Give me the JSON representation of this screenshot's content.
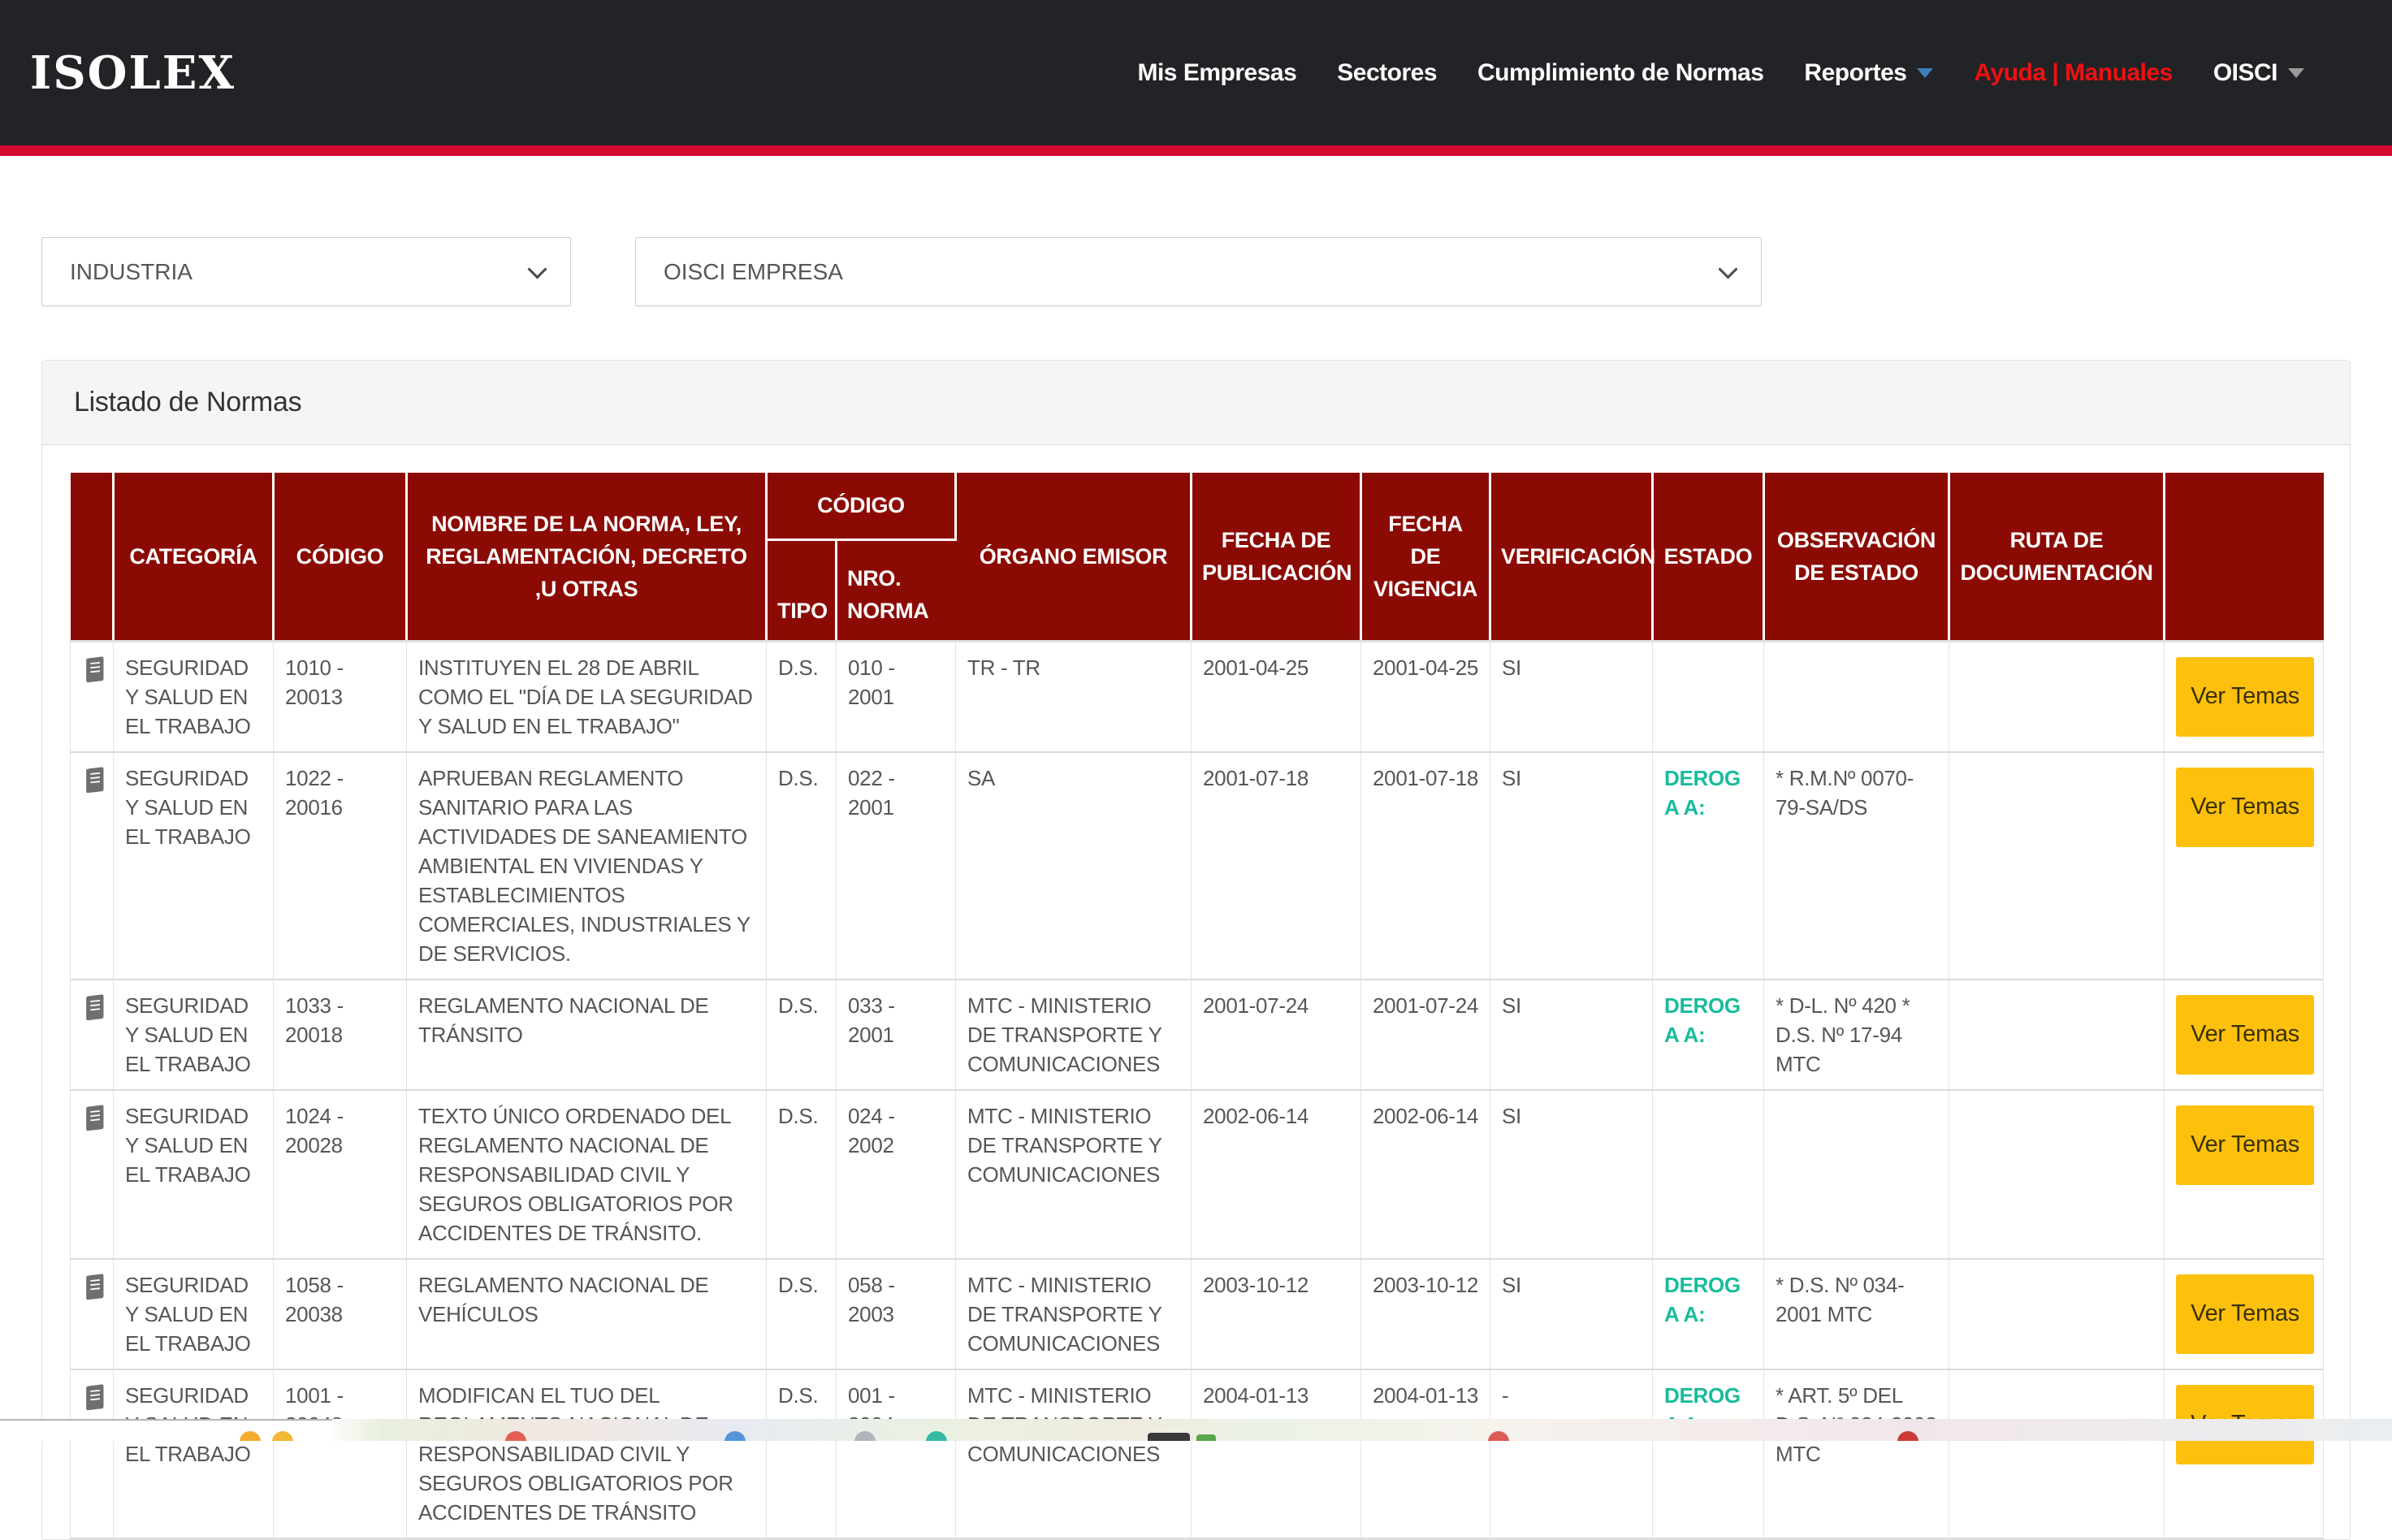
{
  "nav": {
    "brand": "ISOLEX",
    "items": [
      {
        "label": "Mis Empresas",
        "caret": null,
        "accent": false
      },
      {
        "label": "Sectores",
        "caret": null,
        "accent": false
      },
      {
        "label": "Cumplimiento de Normas",
        "caret": null,
        "accent": false
      },
      {
        "label": "Reportes",
        "caret": "blue",
        "accent": false
      },
      {
        "label": "Ayuda | Manuales",
        "caret": null,
        "accent": true
      },
      {
        "label": "OISCI",
        "caret": "gray",
        "accent": false
      }
    ]
  },
  "filters": {
    "sector_select": {
      "value": "INDUSTRIA"
    },
    "empresa_select": {
      "value": "OISCI EMPRESA"
    }
  },
  "panel": {
    "title": "Listado de Normas"
  },
  "table": {
    "action_label": "Ver Temas",
    "headers": {
      "categoria": "CATEGORÍA",
      "codigo": "CÓDIGO",
      "nombre": "NOMBRE DE LA NORMA, LEY, REGLAMENTACIÓN, DECRETO ,U OTRAS",
      "codigo_group": "CÓDIGO",
      "tipo": "TIPO",
      "nro_norma": "NRO. NORMA",
      "organo_emisor": "ÓRGANO EMISOR",
      "fecha_publicacion": "FECHA DE PUBLICACIÓN",
      "fecha_vigencia": "FECHA DE VIGENCIA",
      "verificacion": "VERIFICACIÓN",
      "estado": "ESTADO",
      "observacion_estado": "OBSERVACIÓN DE ESTADO",
      "ruta_documentacion": "RUTA DE DOCUMENTACIÓN"
    },
    "rows": [
      {
        "categoria": "SEGURIDAD Y SALUD EN EL TRABAJO",
        "codigo": "1010 - 20013",
        "nombre": "INSTITUYEN EL 28 DE ABRIL COMO EL \"DÍA DE LA SEGURIDAD Y SALUD EN EL TRABAJO\"",
        "tipo": "D.S.",
        "nro_norma": "010 - 2001",
        "organo_emisor": "TR - TR",
        "fecha_publicacion": "2001-04-25",
        "fecha_vigencia": "2001-04-25",
        "verificacion": "SI",
        "estado": "",
        "observacion": "",
        "ruta": ""
      },
      {
        "categoria": "SEGURIDAD Y SALUD EN EL TRABAJO",
        "codigo": "1022 - 20016",
        "nombre": "APRUEBAN REGLAMENTO SANITARIO PARA LAS ACTIVIDADES DE SANEAMIENTO AMBIENTAL EN VIVIENDAS Y ESTABLECIMIENTOS COMERCIALES, INDUSTRIALES Y DE SERVICIOS.",
        "tipo": "D.S.",
        "nro_norma": "022 - 2001",
        "organo_emisor": "SA",
        "fecha_publicacion": "2001-07-18",
        "fecha_vigencia": "2001-07-18",
        "verificacion": "SI",
        "estado": "DEROGA A:",
        "observacion": "* R.M.Nº 0070-79-SA/DS",
        "ruta": ""
      },
      {
        "categoria": "SEGURIDAD Y SALUD EN EL TRABAJO",
        "codigo": "1033 - 20018",
        "nombre": "REGLAMENTO NACIONAL DE TRÁNSITO",
        "tipo": "D.S.",
        "nro_norma": "033 - 2001",
        "organo_emisor": "MTC - MINISTERIO DE TRANSPORTE Y COMUNICACIONES",
        "fecha_publicacion": "2001-07-24",
        "fecha_vigencia": "2001-07-24",
        "verificacion": "SI",
        "estado": "DEROGA A:",
        "observacion": "* D-L. Nº 420 * D.S. Nº 17-94 MTC",
        "ruta": ""
      },
      {
        "categoria": "SEGURIDAD Y SALUD EN EL TRABAJO",
        "codigo": "1024 - 20028",
        "nombre": "TEXTO ÚNICO ORDENADO DEL REGLAMENTO NACIONAL DE RESPONSABILIDAD CIVIL Y SEGUROS OBLIGATORIOS POR ACCIDENTES DE TRÁNSITO.",
        "tipo": "D.S.",
        "nro_norma": "024 - 2002",
        "organo_emisor": "MTC - MINISTERIO DE TRANSPORTE Y COMUNICACIONES",
        "fecha_publicacion": "2002-06-14",
        "fecha_vigencia": "2002-06-14",
        "verificacion": "SI",
        "estado": "",
        "observacion": "",
        "ruta": ""
      },
      {
        "categoria": "SEGURIDAD Y SALUD EN EL TRABAJO",
        "codigo": "1058 - 20038",
        "nombre": "REGLAMENTO NACIONAL DE VEHÍCULOS",
        "tipo": "D.S.",
        "nro_norma": "058 - 2003",
        "organo_emisor": "MTC - MINISTERIO DE TRANSPORTE Y COMUNICACIONES",
        "fecha_publicacion": "2003-10-12",
        "fecha_vigencia": "2003-10-12",
        "verificacion": "SI",
        "estado": "DEROGA A:",
        "observacion": "* D.S. Nº 034-2001 MTC",
        "ruta": ""
      },
      {
        "categoria": "SEGURIDAD Y SALUD EN EL TRABAJO",
        "codigo": "1001 - 20048",
        "nombre": "MODIFICAN EL TUO DEL REGLAMENTO NACIONAL DE RESPONSABILIDAD CIVIL Y SEGUROS OBLIGATORIOS POR ACCIDENTES DE TRÁNSITO",
        "tipo": "D.S.",
        "nro_norma": "001 - 2004",
        "organo_emisor": "MTC - MINISTERIO DE TRANSPORTE Y COMUNICACIONES",
        "fecha_publicacion": "2004-01-13",
        "fecha_vigencia": "2004-01-13",
        "verificacion": "-",
        "estado": "DEROGA A:",
        "observacion": "* ART. 5º DEL D.S. Nº 024-2002 MTC",
        "ruta": ""
      }
    ]
  },
  "colors": {
    "navbar_bg": "#222326",
    "brand_red_line": "#d20a2e",
    "nav_link_red": "#ef1010",
    "header_maroon": "#8b0b04",
    "accent_teal": "#18bc9c",
    "button_amber": "#fdc00d",
    "text_gray": "#555657"
  }
}
